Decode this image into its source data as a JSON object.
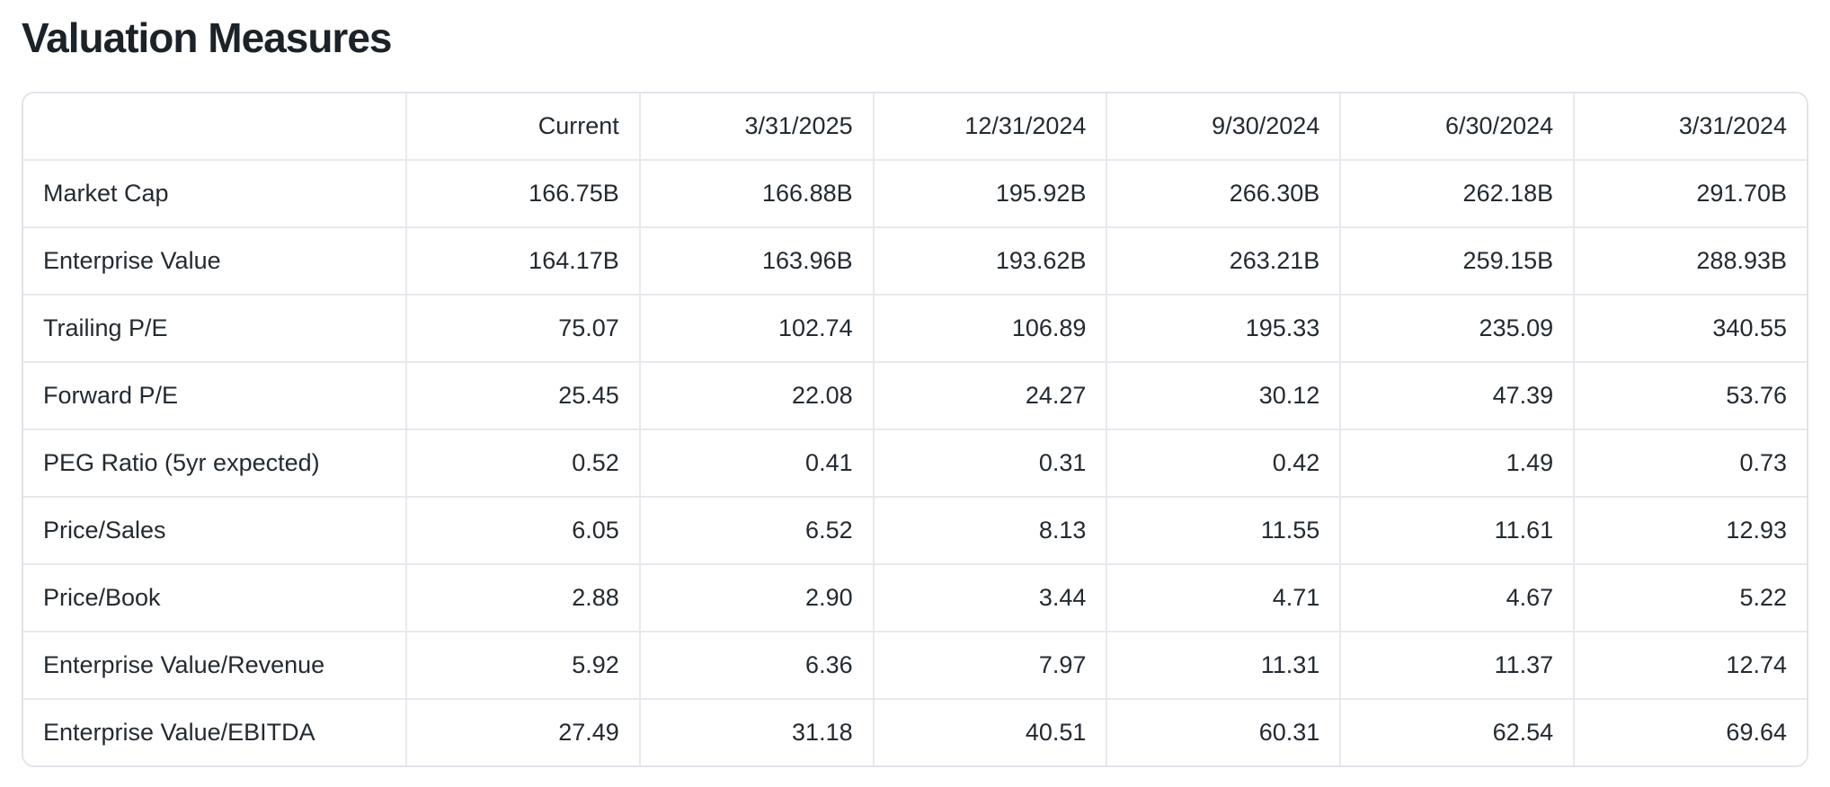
{
  "page": {
    "title": "Valuation Measures"
  },
  "table": {
    "columns": [
      "",
      "Current",
      "3/31/2025",
      "12/31/2024",
      "9/30/2024",
      "6/30/2024",
      "3/31/2024"
    ],
    "rows": [
      {
        "label": "Market Cap",
        "values": [
          "166.75B",
          "166.88B",
          "195.92B",
          "266.30B",
          "262.18B",
          "291.70B"
        ]
      },
      {
        "label": "Enterprise Value",
        "values": [
          "164.17B",
          "163.96B",
          "193.62B",
          "263.21B",
          "259.15B",
          "288.93B"
        ]
      },
      {
        "label": "Trailing P/E",
        "values": [
          "75.07",
          "102.74",
          "106.89",
          "195.33",
          "235.09",
          "340.55"
        ]
      },
      {
        "label": "Forward P/E",
        "values": [
          "25.45",
          "22.08",
          "24.27",
          "30.12",
          "47.39",
          "53.76"
        ]
      },
      {
        "label": "PEG Ratio (5yr expected)",
        "values": [
          "0.52",
          "0.41",
          "0.31",
          "0.42",
          "1.49",
          "0.73"
        ]
      },
      {
        "label": "Price/Sales",
        "values": [
          "6.05",
          "6.52",
          "8.13",
          "11.55",
          "11.61",
          "12.93"
        ]
      },
      {
        "label": "Price/Book",
        "values": [
          "2.88",
          "2.90",
          "3.44",
          "4.71",
          "4.67",
          "5.22"
        ]
      },
      {
        "label": "Enterprise Value/Revenue",
        "values": [
          "5.92",
          "6.36",
          "7.97",
          "11.31",
          "11.37",
          "12.74"
        ]
      },
      {
        "label": "Enterprise Value/EBITDA",
        "values": [
          "27.49",
          "31.18",
          "40.51",
          "60.31",
          "62.54",
          "69.64"
        ]
      }
    ]
  },
  "colors": {
    "text": "#232a31",
    "title_text": "#1b2228",
    "border": "#e0e4e9",
    "inner_border": "#e6e9ed",
    "background": "#ffffff"
  }
}
